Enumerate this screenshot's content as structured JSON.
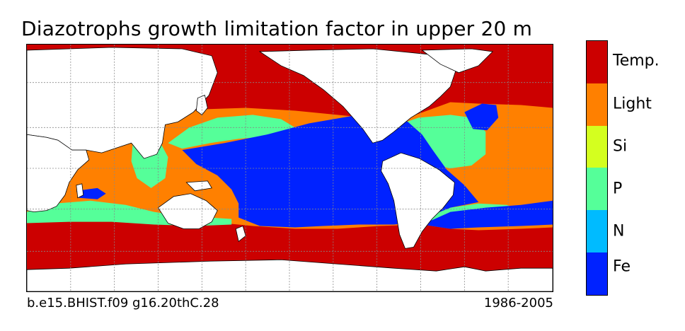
{
  "title": "Diazotrophs growth limitation factor in upper 20 m",
  "caption_left": "b.e15.BHIST.f09 g16.20thC.28",
  "caption_right": "1986-2005",
  "legend": [
    {
      "label": "Temp.",
      "color": "#cc0000"
    },
    {
      "label": "Light",
      "color": "#ff8000"
    },
    {
      "label": "Si",
      "color": "#d4ff1f"
    },
    {
      "label": "P",
      "color": "#55ff99"
    },
    {
      "label": "N",
      "color": "#00bbff"
    },
    {
      "label": "Fe",
      "color": "#0022ff"
    }
  ],
  "map": {
    "colors": {
      "land": "#ffffff",
      "coast": "#000000",
      "grid": "#888888"
    }
  }
}
